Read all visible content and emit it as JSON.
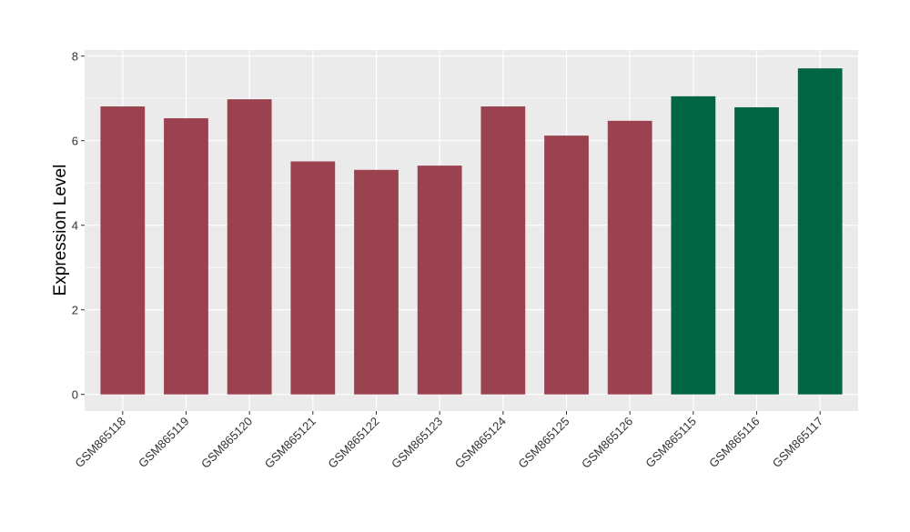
{
  "chart_data": {
    "type": "bar",
    "title": "",
    "xlabel": "",
    "ylabel": "Expression Level",
    "ylim": [
      0,
      8
    ],
    "yticks": [
      0,
      2,
      4,
      6,
      8
    ],
    "grid": true,
    "legend": "none",
    "categories": [
      "GSM865118",
      "GSM865119",
      "GSM865120",
      "GSM865121",
      "GSM865122",
      "GSM865123",
      "GSM865124",
      "GSM865125",
      "GSM865126",
      "GSM865115",
      "GSM865116",
      "GSM865117"
    ],
    "values": [
      6.81,
      6.53,
      6.98,
      5.51,
      5.31,
      5.41,
      6.81,
      6.12,
      6.47,
      7.05,
      6.79,
      7.71
    ],
    "bar_colors": [
      "#9a4250",
      "#9a4250",
      "#9a4250",
      "#9a4250",
      "#9a4250",
      "#9a4250",
      "#9a4250",
      "#9a4250",
      "#9a4250",
      "#006644",
      "#006644",
      "#006644"
    ],
    "panel_background": "#ebebeb",
    "gridline_color": "#ffffff"
  }
}
